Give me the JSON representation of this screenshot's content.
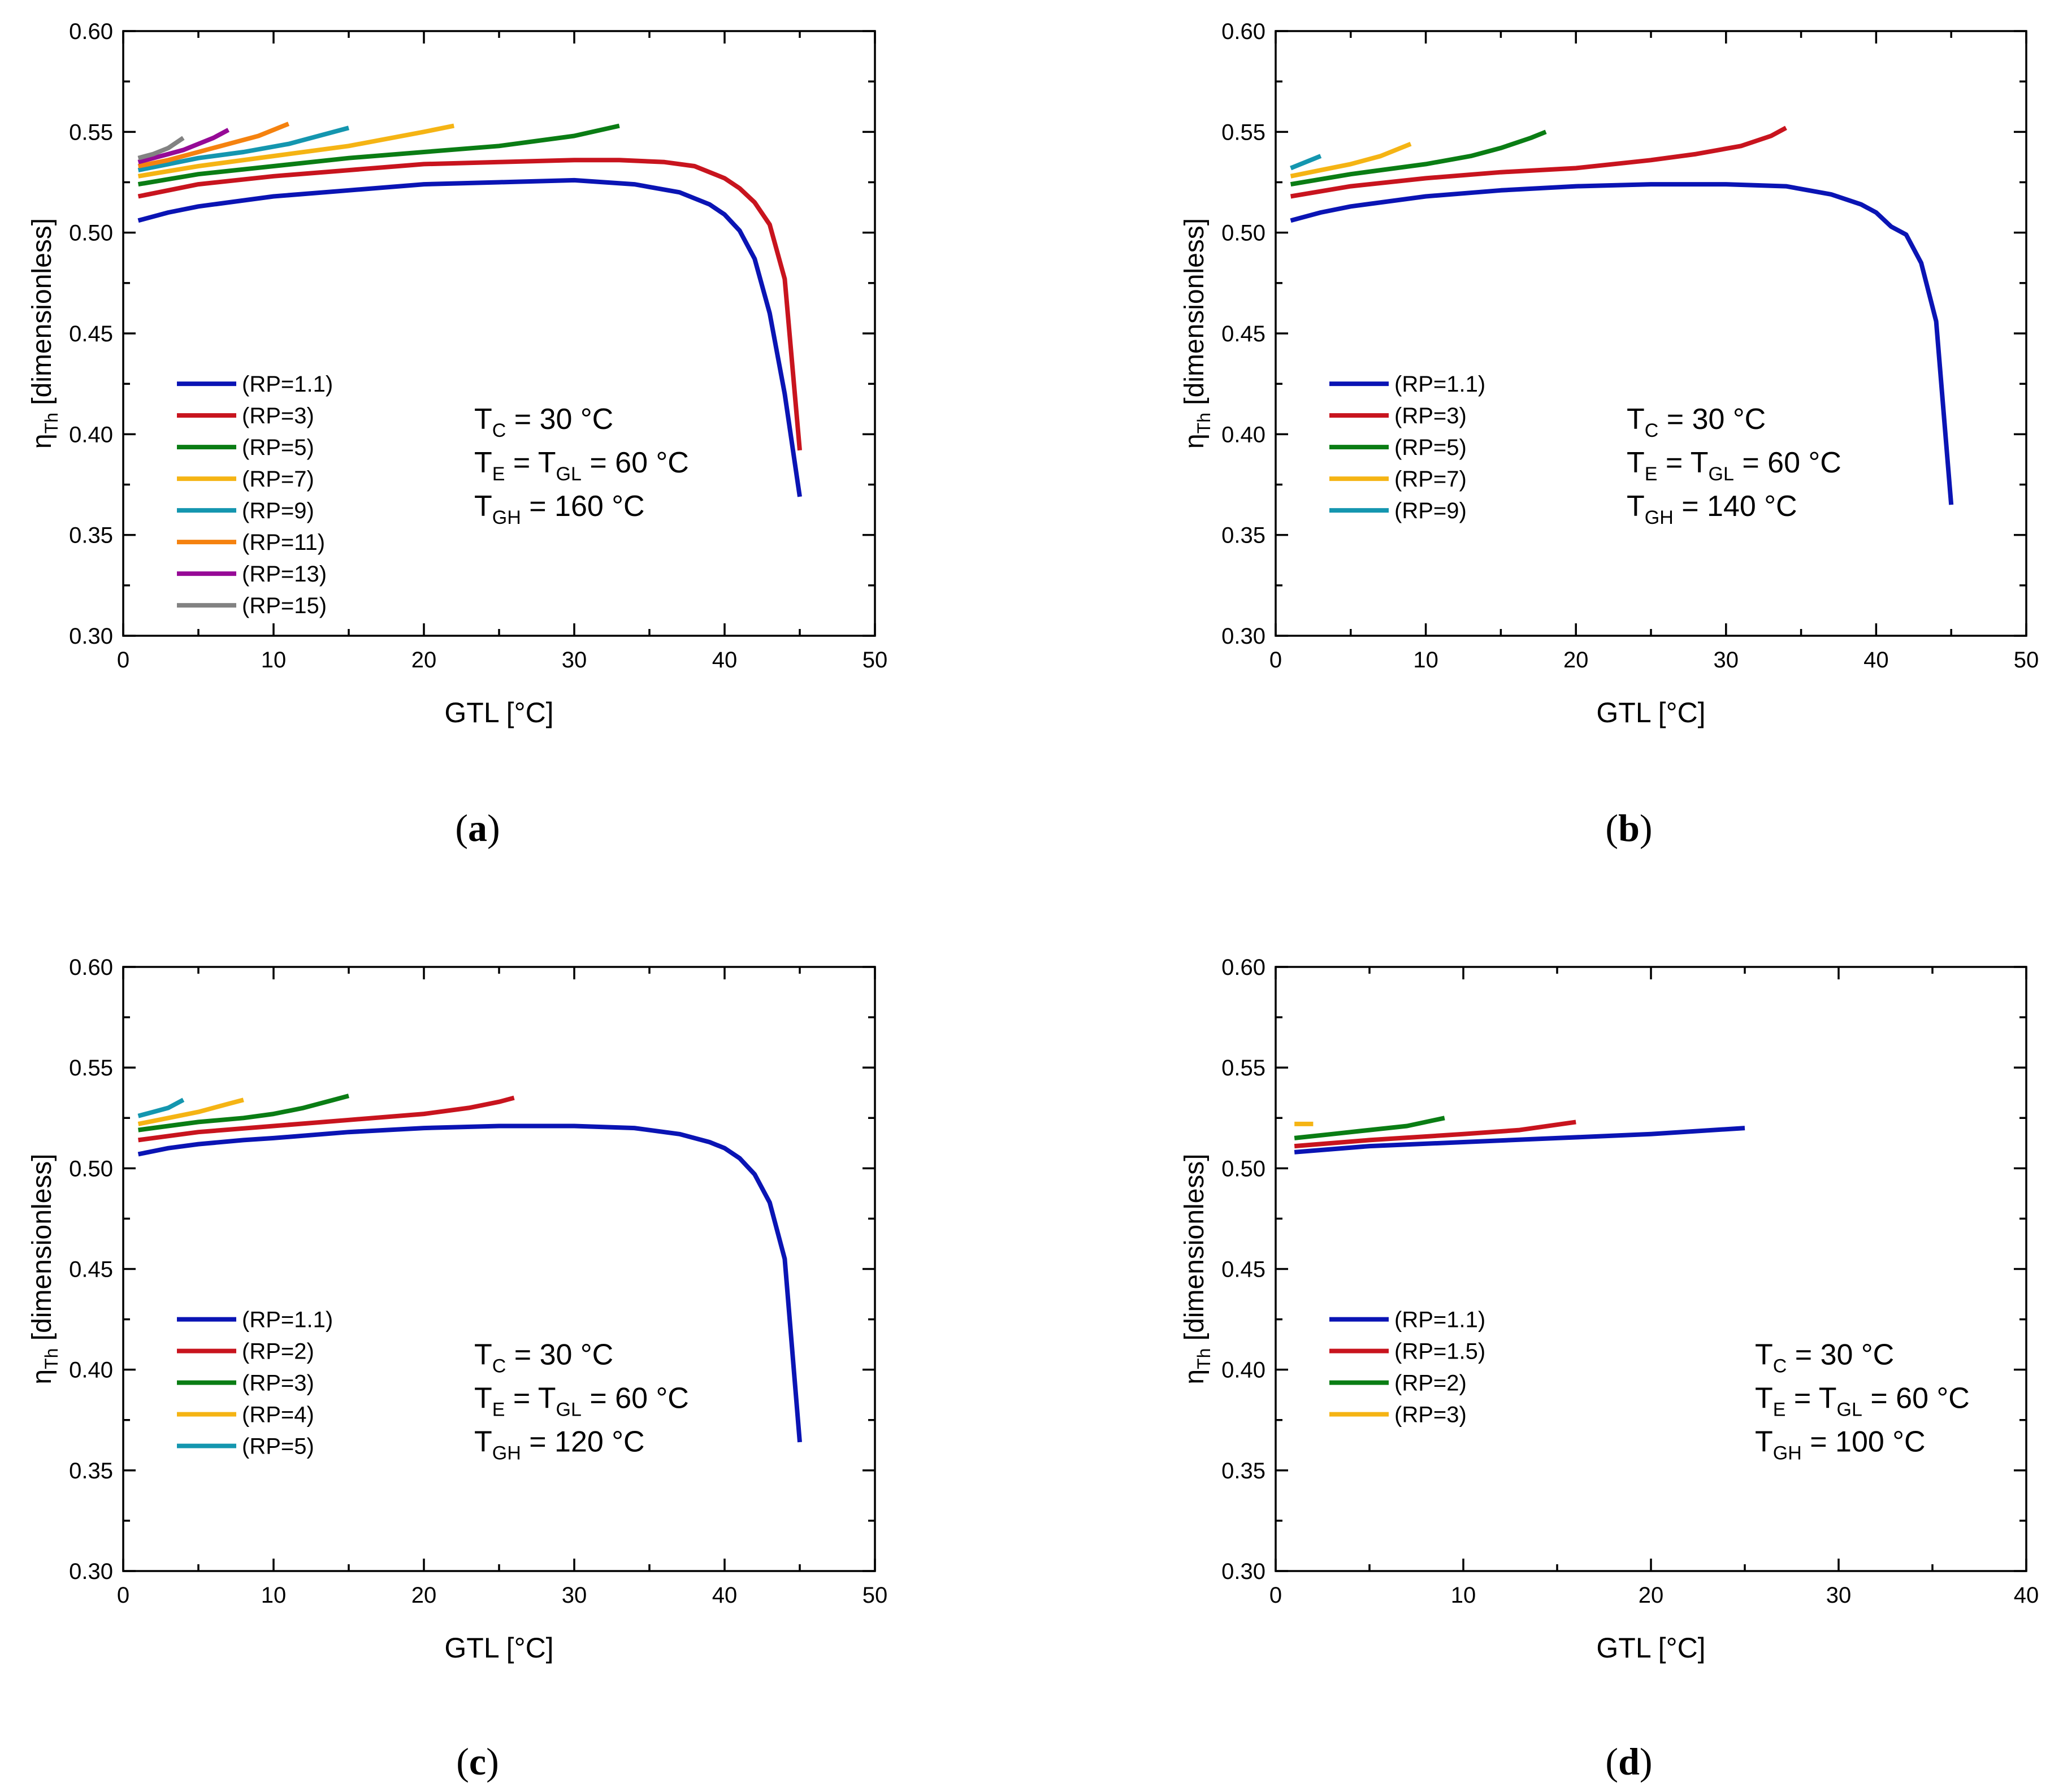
{
  "figure": {
    "colors": {
      "RP=1.1": "#0a14b4",
      "RP=1.5": "#c8141e",
      "RP=2": "#c8141e",
      "RP=3": "#c8141e",
      "RP=5": "#0a7d14",
      "RP=7": "#f5b414",
      "RP=9": "#1496af",
      "RP=11": "#f5820f",
      "RP=13": "#960a96",
      "RP=15": "#828282",
      "axis": "#000000",
      "background": "#ffffff"
    }
  },
  "chart_data": [
    {
      "id": "a",
      "type": "line",
      "panel_label": "a",
      "xlabel": "GTL [°C]",
      "ylabel_prefix": "η",
      "ylabel_sub": "Th",
      "ylabel_suffix": " [dimensionless]",
      "xlim": [
        0,
        50
      ],
      "ylim": [
        0.3,
        0.6
      ],
      "xticks": [
        "0",
        "10",
        "20",
        "30",
        "40",
        "50"
      ],
      "yticks": [
        "0.30",
        "0.35",
        "0.40",
        "0.45",
        "0.50",
        "0.55",
        "0.60"
      ],
      "grid": false,
      "legend_position": "bottom-left",
      "annotations": [
        {
          "main": "T",
          "sub": "C",
          "rest": " = 30 °C"
        },
        {
          "main": "T",
          "sub": "E",
          "rest": " = T",
          "sub2": "GL",
          "rest2": " = 60 °C"
        },
        {
          "main": "T",
          "sub": "GH",
          "rest": " = 160 °C"
        }
      ],
      "series": [
        {
          "name": "(RP=1.1)",
          "color": "#0a14b4",
          "x": [
            1,
            3,
            5,
            8,
            10,
            15,
            20,
            25,
            30,
            34,
            37,
            39,
            40,
            41,
            42,
            43,
            44,
            45
          ],
          "y": [
            0.506,
            0.51,
            0.513,
            0.516,
            0.518,
            0.521,
            0.524,
            0.525,
            0.526,
            0.524,
            0.52,
            0.514,
            0.509,
            0.501,
            0.487,
            0.46,
            0.42,
            0.369
          ]
        },
        {
          "name": "(RP=3)",
          "color": "#c8141e",
          "x": [
            1,
            3,
            5,
            10,
            15,
            20,
            25,
            30,
            33,
            36,
            38,
            40,
            41,
            42,
            43,
            44,
            45
          ],
          "y": [
            0.518,
            0.521,
            0.524,
            0.528,
            0.531,
            0.534,
            0.535,
            0.536,
            0.536,
            0.535,
            0.533,
            0.527,
            0.522,
            0.515,
            0.504,
            0.477,
            0.392
          ]
        },
        {
          "name": "(RP=5)",
          "color": "#0a7d14",
          "x": [
            1,
            5,
            10,
            15,
            20,
            25,
            30,
            33
          ],
          "y": [
            0.524,
            0.529,
            0.533,
            0.537,
            0.54,
            0.543,
            0.548,
            0.553
          ]
        },
        {
          "name": "(RP=7)",
          "color": "#f5b414",
          "x": [
            1,
            5,
            10,
            15,
            20,
            22
          ],
          "y": [
            0.528,
            0.533,
            0.538,
            0.543,
            0.55,
            0.553
          ]
        },
        {
          "name": "(RP=9)",
          "color": "#1496af",
          "x": [
            1,
            3,
            5,
            8,
            11,
            13,
            15
          ],
          "y": [
            0.531,
            0.534,
            0.537,
            0.54,
            0.544,
            0.548,
            0.552
          ]
        },
        {
          "name": "(RP=11)",
          "color": "#f5820f",
          "x": [
            1,
            3,
            5,
            7,
            9,
            11
          ],
          "y": [
            0.533,
            0.536,
            0.54,
            0.544,
            0.548,
            0.554
          ]
        },
        {
          "name": "(RP=13)",
          "color": "#960a96",
          "x": [
            1,
            2,
            3,
            4,
            5,
            6,
            7
          ],
          "y": [
            0.535,
            0.537,
            0.539,
            0.541,
            0.544,
            0.547,
            0.551
          ]
        },
        {
          "name": "(RP=15)",
          "color": "#828282",
          "x": [
            1,
            2,
            3,
            4
          ],
          "y": [
            0.537,
            0.539,
            0.542,
            0.547
          ]
        }
      ]
    },
    {
      "id": "b",
      "type": "line",
      "panel_label": "b",
      "xlabel": "GTL [°C]",
      "ylabel_prefix": "η",
      "ylabel_sub": "Th",
      "ylabel_suffix": " [dimensionless]",
      "xlim": [
        0,
        50
      ],
      "ylim": [
        0.3,
        0.6
      ],
      "xticks": [
        "0",
        "10",
        "20",
        "30",
        "40",
        "50"
      ],
      "yticks": [
        "0.30",
        "0.35",
        "0.40",
        "0.45",
        "0.50",
        "0.55",
        "0.60"
      ],
      "grid": false,
      "legend_position": "bottom-left",
      "annotations": [
        {
          "main": "T",
          "sub": "C",
          "rest": " = 30 °C"
        },
        {
          "main": "T",
          "sub": "E",
          "rest": " = T",
          "sub2": "GL",
          "rest2": " = 60 °C"
        },
        {
          "main": "T",
          "sub": "GH",
          "rest": " = 140 °C"
        }
      ],
      "series": [
        {
          "name": "(RP=1.1)",
          "color": "#0a14b4",
          "x": [
            1,
            3,
            5,
            8,
            10,
            15,
            20,
            25,
            30,
            34,
            37,
            39,
            40,
            41,
            42,
            43,
            44,
            45
          ],
          "y": [
            0.506,
            0.51,
            0.513,
            0.516,
            0.518,
            0.521,
            0.523,
            0.524,
            0.524,
            0.523,
            0.519,
            0.514,
            0.51,
            0.503,
            0.499,
            0.485,
            0.456,
            0.365
          ]
        },
        {
          "name": "(RP=3)",
          "color": "#c8141e",
          "x": [
            1,
            5,
            10,
            15,
            20,
            25,
            28,
            31,
            33,
            34
          ],
          "y": [
            0.518,
            0.523,
            0.527,
            0.53,
            0.532,
            0.536,
            0.539,
            0.543,
            0.548,
            0.552
          ]
        },
        {
          "name": "(RP=5)",
          "color": "#0a7d14",
          "x": [
            1,
            5,
            10,
            13,
            15,
            17,
            18
          ],
          "y": [
            0.524,
            0.529,
            0.534,
            0.538,
            0.542,
            0.547,
            0.55
          ]
        },
        {
          "name": "(RP=7)",
          "color": "#f5b414",
          "x": [
            1,
            3,
            5,
            7,
            9
          ],
          "y": [
            0.528,
            0.531,
            0.534,
            0.538,
            0.544
          ]
        },
        {
          "name": "(RP=9)",
          "color": "#1496af",
          "x": [
            1,
            2,
            3
          ],
          "y": [
            0.532,
            0.535,
            0.538
          ]
        }
      ]
    },
    {
      "id": "c",
      "type": "line",
      "panel_label": "c",
      "xlabel": "GTL [°C]",
      "ylabel_prefix": "η",
      "ylabel_sub": "Th",
      "ylabel_suffix": " [dimensionless]",
      "xlim": [
        0,
        50
      ],
      "ylim": [
        0.3,
        0.6
      ],
      "xticks": [
        "0",
        "10",
        "20",
        "30",
        "40",
        "50"
      ],
      "yticks": [
        "0.30",
        "0.35",
        "0.40",
        "0.45",
        "0.50",
        "0.55",
        "0.60"
      ],
      "grid": false,
      "legend_position": "bottom-left",
      "annotations": [
        {
          "main": "T",
          "sub": "C",
          "rest": " = 30 °C"
        },
        {
          "main": "T",
          "sub": "E",
          "rest": " = T",
          "sub2": "GL",
          "rest2": " = 60 °C"
        },
        {
          "main": "T",
          "sub": "GH",
          "rest": " = 120 °C"
        }
      ],
      "series": [
        {
          "name": "(RP=1.1)",
          "color": "#0a14b4",
          "x": [
            1,
            3,
            5,
            8,
            10,
            15,
            20,
            25,
            30,
            34,
            37,
            39,
            40,
            41,
            42,
            43,
            44,
            45
          ],
          "y": [
            0.507,
            0.51,
            0.512,
            0.514,
            0.515,
            0.518,
            0.52,
            0.521,
            0.521,
            0.52,
            0.517,
            0.513,
            0.51,
            0.505,
            0.497,
            0.483,
            0.455,
            0.364
          ]
        },
        {
          "name": "(RP=2)",
          "color": "#c8141e",
          "x": [
            1,
            5,
            10,
            15,
            20,
            23,
            25,
            26
          ],
          "y": [
            0.514,
            0.518,
            0.521,
            0.524,
            0.527,
            0.53,
            0.533,
            0.535
          ]
        },
        {
          "name": "(RP=3)",
          "color": "#0a7d14",
          "x": [
            1,
            5,
            8,
            10,
            12,
            14,
            15
          ],
          "y": [
            0.519,
            0.523,
            0.525,
            0.527,
            0.53,
            0.534,
            0.536
          ]
        },
        {
          "name": "(RP=4)",
          "color": "#f5b414",
          "x": [
            1,
            3,
            5,
            7,
            8
          ],
          "y": [
            0.522,
            0.525,
            0.528,
            0.532,
            0.534
          ]
        },
        {
          "name": "(RP=5)",
          "color": "#1496af",
          "x": [
            1,
            2,
            3,
            4
          ],
          "y": [
            0.526,
            0.528,
            0.53,
            0.534
          ]
        }
      ]
    },
    {
      "id": "d",
      "type": "line",
      "panel_label": "d",
      "xlabel": "GTL [°C]",
      "ylabel_prefix": "η",
      "ylabel_sub": "Th",
      "ylabel_suffix": " [dimensionless]",
      "xlim": [
        0,
        40
      ],
      "ylim": [
        0.3,
        0.6
      ],
      "xticks": [
        "0",
        "10",
        "20",
        "30",
        "40"
      ],
      "yticks": [
        "0.30",
        "0.35",
        "0.40",
        "0.45",
        "0.50",
        "0.55",
        "0.60"
      ],
      "grid": false,
      "legend_position": "bottom-left",
      "annotations": [
        {
          "main": "T",
          "sub": "C",
          "rest": " = 30 °C"
        },
        {
          "main": "T",
          "sub": "E",
          "rest": " = T",
          "sub2": "GL",
          "rest2": " = 60 °C"
        },
        {
          "main": "T",
          "sub": "GH",
          "rest": " = 100 °C"
        }
      ],
      "series": [
        {
          "name": "(RP=1.1)",
          "color": "#0a14b4",
          "x": [
            1,
            5,
            10,
            15,
            20,
            25
          ],
          "y": [
            0.508,
            0.511,
            0.513,
            0.515,
            0.517,
            0.52
          ]
        },
        {
          "name": "(RP=1.5)",
          "color": "#c8141e",
          "x": [
            1,
            5,
            10,
            13,
            16
          ],
          "y": [
            0.511,
            0.514,
            0.517,
            0.519,
            0.523
          ]
        },
        {
          "name": "(RP=2)",
          "color": "#0a7d14",
          "x": [
            1,
            3,
            5,
            7,
            9
          ],
          "y": [
            0.515,
            0.517,
            0.519,
            0.521,
            0.525
          ]
        },
        {
          "name": "(RP=3)",
          "color": "#f5b414",
          "x": [
            1,
            2
          ],
          "y": [
            0.522,
            0.522
          ]
        }
      ]
    }
  ]
}
